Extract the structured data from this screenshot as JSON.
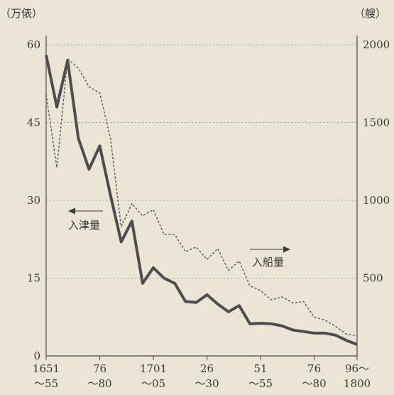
{
  "chart_data": {
    "type": "line",
    "left_unit": "（万俵）",
    "right_unit": "（艘）",
    "left_axis": {
      "ylim": [
        0,
        60
      ],
      "ticks": [
        "0",
        "15",
        "30",
        "45",
        "60"
      ]
    },
    "right_axis": {
      "ylim": [
        0,
        2000
      ],
      "ticks": [
        "500",
        "1000",
        "1500",
        "2000"
      ]
    },
    "x_ticks": [
      {
        "index": 0,
        "top": "1651",
        "bottom": "～55"
      },
      {
        "index": 5,
        "top": "76",
        "bottom": "～80"
      },
      {
        "index": 10,
        "top": "1701",
        "bottom": "～05"
      },
      {
        "index": 15,
        "top": "26",
        "bottom": "～30"
      },
      {
        "index": 20,
        "top": "51",
        "bottom": "～55"
      },
      {
        "index": 25,
        "top": "76",
        "bottom": "～80"
      },
      {
        "index": 29,
        "top": "96～",
        "bottom": "1800"
      }
    ],
    "series": [
      {
        "name": "入津量",
        "axis": "left",
        "style": "solid",
        "values": [
          58,
          48,
          57,
          42,
          36,
          40.5,
          31,
          22,
          26,
          14,
          17,
          15,
          14,
          10.5,
          10.3,
          11.8,
          10,
          8.5,
          9.7,
          6.2,
          6.3,
          6.2,
          5.8,
          5,
          4.7,
          4.4,
          4.4,
          4,
          3,
          2.2
        ]
      },
      {
        "name": "入船量",
        "axis": "right",
        "style": "dashed",
        "values": [
          1680,
          1210,
          1910,
          1850,
          1730,
          1690,
          1400,
          830,
          980,
          900,
          940,
          780,
          780,
          670,
          700,
          620,
          690,
          550,
          610,
          450,
          420,
          360,
          380,
          340,
          350,
          250,
          230,
          190,
          140,
          130
        ]
      }
    ],
    "annotations": [
      {
        "text": "入津量",
        "arrow": "left"
      },
      {
        "text": "入船量",
        "arrow": "right"
      }
    ],
    "grid": "horizontal-dashed"
  }
}
